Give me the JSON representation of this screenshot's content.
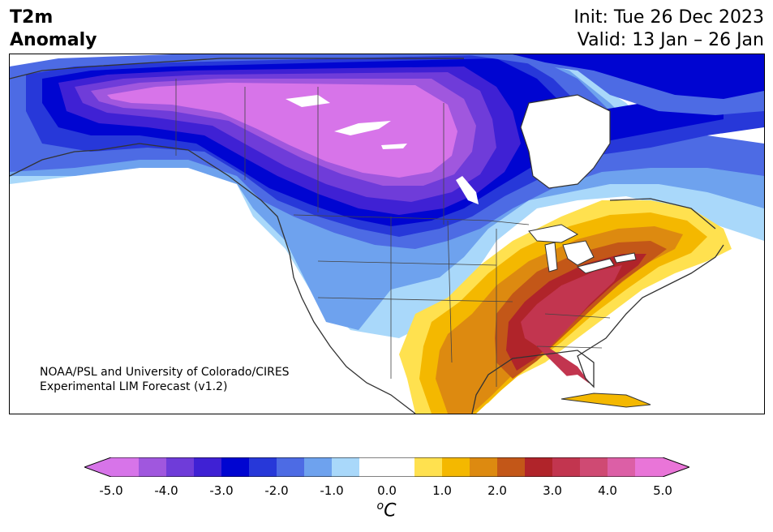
{
  "title": {
    "line1": "T2m",
    "line2": "Anomaly"
  },
  "init": "Init: Tue 26 Dec 2023",
  "valid": "Valid: 13 Jan – 26 Jan",
  "credit": {
    "line1": "NOAA/PSL and University of Colorado/CIRES",
    "line2": "Experimental LIM Forecast (v1.2)"
  },
  "colorbar": {
    "ticks": [
      "-5.0",
      "-4.0",
      "-3.0",
      "-2.0",
      "-1.0",
      "0.0",
      "1.0",
      "2.0",
      "3.0",
      "4.0",
      "5.0"
    ],
    "unit_sup": "o",
    "unit": "C",
    "colors": [
      "#d774e9",
      "#a057de",
      "#6f3cd9",
      "#3f21d4",
      "#0005d1",
      "#2738d9",
      "#4d6be4",
      "#6ea2ee",
      "#a9d8fa",
      "#ffffff",
      "#ffffff",
      "#ffe14f",
      "#f4b800",
      "#dd8a10",
      "#c35718",
      "#b0242a",
      "#c2354f",
      "#cf4a73",
      "#dc5fa6",
      "#e975d8"
    ],
    "under_color": "#d774e9",
    "over_color": "#e975d8"
  },
  "anomaly_fields": [
    {
      "region": "Western/central Canada",
      "min_anomaly": "-5.0",
      "color": "#d774e9"
    },
    {
      "region": "Southeastern United States",
      "max_anomaly": "4.0",
      "color": "#c2354f"
    },
    {
      "region": "Western United States",
      "anomaly": "-1.0",
      "color": "#6ea2ee"
    }
  ]
}
